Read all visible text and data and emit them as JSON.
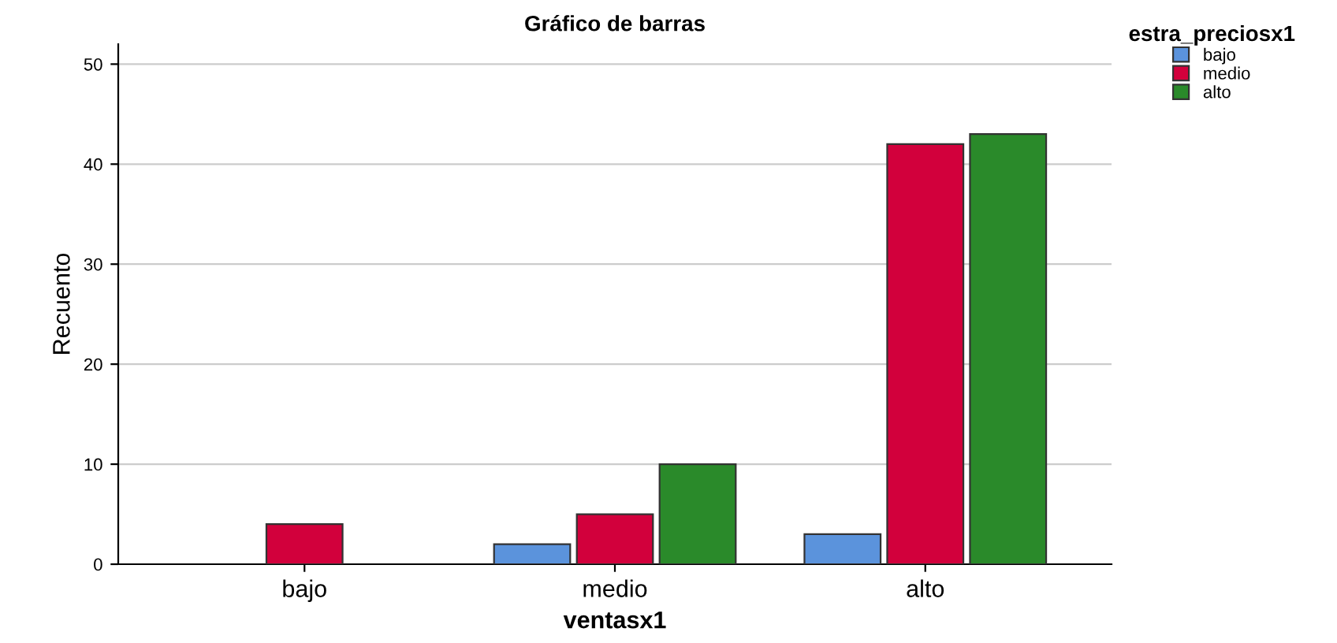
{
  "chart_data": {
    "type": "bar",
    "title": "Gráfico de barras",
    "xlabel": "ventasx1",
    "ylabel": "Recuento",
    "legend_title": "estra_preciosx1",
    "categories": [
      "bajo",
      "medio",
      "alto"
    ],
    "series": [
      {
        "name": "bajo",
        "color": "#5b93dc",
        "values": [
          null,
          2,
          3
        ]
      },
      {
        "name": "medio",
        "color": "#d2003c",
        "values": [
          4,
          5,
          42
        ]
      },
      {
        "name": "alto",
        "color": "#2a8a2a",
        "values": [
          null,
          10,
          43
        ]
      }
    ],
    "ylim": [
      0,
      52
    ],
    "yticks": [
      0,
      10,
      20,
      30,
      40,
      50
    ],
    "grid": "y",
    "legend": "top right"
  }
}
